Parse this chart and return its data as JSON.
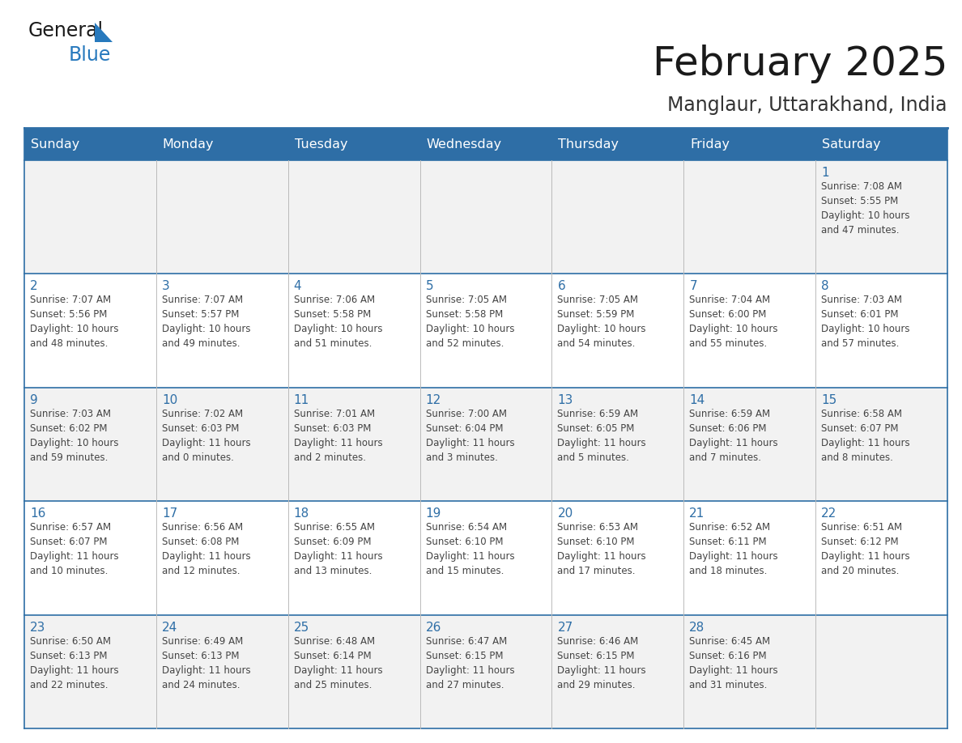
{
  "title": "February 2025",
  "subtitle": "Manglaur, Uttarakhand, India",
  "days_of_week": [
    "Sunday",
    "Monday",
    "Tuesday",
    "Wednesday",
    "Thursday",
    "Friday",
    "Saturday"
  ],
  "header_bg": "#2E6EA6",
  "header_text": "#FFFFFF",
  "cell_bg_grey": "#F2F2F2",
  "cell_bg_white": "#FFFFFF",
  "cell_border_blue": "#2E6EA6",
  "day_num_color": "#2E6EA6",
  "info_color": "#444444",
  "title_color": "#1a1a1a",
  "subtitle_color": "#333333",
  "logo_general_color": "#1a1a1a",
  "logo_blue_color": "#2779BD",
  "weeks": [
    [
      {
        "day": null,
        "info": ""
      },
      {
        "day": null,
        "info": ""
      },
      {
        "day": null,
        "info": ""
      },
      {
        "day": null,
        "info": ""
      },
      {
        "day": null,
        "info": ""
      },
      {
        "day": null,
        "info": ""
      },
      {
        "day": 1,
        "info": "Sunrise: 7:08 AM\nSunset: 5:55 PM\nDaylight: 10 hours\nand 47 minutes."
      }
    ],
    [
      {
        "day": 2,
        "info": "Sunrise: 7:07 AM\nSunset: 5:56 PM\nDaylight: 10 hours\nand 48 minutes."
      },
      {
        "day": 3,
        "info": "Sunrise: 7:07 AM\nSunset: 5:57 PM\nDaylight: 10 hours\nand 49 minutes."
      },
      {
        "day": 4,
        "info": "Sunrise: 7:06 AM\nSunset: 5:58 PM\nDaylight: 10 hours\nand 51 minutes."
      },
      {
        "day": 5,
        "info": "Sunrise: 7:05 AM\nSunset: 5:58 PM\nDaylight: 10 hours\nand 52 minutes."
      },
      {
        "day": 6,
        "info": "Sunrise: 7:05 AM\nSunset: 5:59 PM\nDaylight: 10 hours\nand 54 minutes."
      },
      {
        "day": 7,
        "info": "Sunrise: 7:04 AM\nSunset: 6:00 PM\nDaylight: 10 hours\nand 55 minutes."
      },
      {
        "day": 8,
        "info": "Sunrise: 7:03 AM\nSunset: 6:01 PM\nDaylight: 10 hours\nand 57 minutes."
      }
    ],
    [
      {
        "day": 9,
        "info": "Sunrise: 7:03 AM\nSunset: 6:02 PM\nDaylight: 10 hours\nand 59 minutes."
      },
      {
        "day": 10,
        "info": "Sunrise: 7:02 AM\nSunset: 6:03 PM\nDaylight: 11 hours\nand 0 minutes."
      },
      {
        "day": 11,
        "info": "Sunrise: 7:01 AM\nSunset: 6:03 PM\nDaylight: 11 hours\nand 2 minutes."
      },
      {
        "day": 12,
        "info": "Sunrise: 7:00 AM\nSunset: 6:04 PM\nDaylight: 11 hours\nand 3 minutes."
      },
      {
        "day": 13,
        "info": "Sunrise: 6:59 AM\nSunset: 6:05 PM\nDaylight: 11 hours\nand 5 minutes."
      },
      {
        "day": 14,
        "info": "Sunrise: 6:59 AM\nSunset: 6:06 PM\nDaylight: 11 hours\nand 7 minutes."
      },
      {
        "day": 15,
        "info": "Sunrise: 6:58 AM\nSunset: 6:07 PM\nDaylight: 11 hours\nand 8 minutes."
      }
    ],
    [
      {
        "day": 16,
        "info": "Sunrise: 6:57 AM\nSunset: 6:07 PM\nDaylight: 11 hours\nand 10 minutes."
      },
      {
        "day": 17,
        "info": "Sunrise: 6:56 AM\nSunset: 6:08 PM\nDaylight: 11 hours\nand 12 minutes."
      },
      {
        "day": 18,
        "info": "Sunrise: 6:55 AM\nSunset: 6:09 PM\nDaylight: 11 hours\nand 13 minutes."
      },
      {
        "day": 19,
        "info": "Sunrise: 6:54 AM\nSunset: 6:10 PM\nDaylight: 11 hours\nand 15 minutes."
      },
      {
        "day": 20,
        "info": "Sunrise: 6:53 AM\nSunset: 6:10 PM\nDaylight: 11 hours\nand 17 minutes."
      },
      {
        "day": 21,
        "info": "Sunrise: 6:52 AM\nSunset: 6:11 PM\nDaylight: 11 hours\nand 18 minutes."
      },
      {
        "day": 22,
        "info": "Sunrise: 6:51 AM\nSunset: 6:12 PM\nDaylight: 11 hours\nand 20 minutes."
      }
    ],
    [
      {
        "day": 23,
        "info": "Sunrise: 6:50 AM\nSunset: 6:13 PM\nDaylight: 11 hours\nand 22 minutes."
      },
      {
        "day": 24,
        "info": "Sunrise: 6:49 AM\nSunset: 6:13 PM\nDaylight: 11 hours\nand 24 minutes."
      },
      {
        "day": 25,
        "info": "Sunrise: 6:48 AM\nSunset: 6:14 PM\nDaylight: 11 hours\nand 25 minutes."
      },
      {
        "day": 26,
        "info": "Sunrise: 6:47 AM\nSunset: 6:15 PM\nDaylight: 11 hours\nand 27 minutes."
      },
      {
        "day": 27,
        "info": "Sunrise: 6:46 AM\nSunset: 6:15 PM\nDaylight: 11 hours\nand 29 minutes."
      },
      {
        "day": 28,
        "info": "Sunrise: 6:45 AM\nSunset: 6:16 PM\nDaylight: 11 hours\nand 31 minutes."
      },
      {
        "day": null,
        "info": ""
      }
    ]
  ],
  "row_bg": [
    "#F2F2F2",
    "#FFFFFF",
    "#F2F2F2",
    "#FFFFFF",
    "#F2F2F2"
  ]
}
